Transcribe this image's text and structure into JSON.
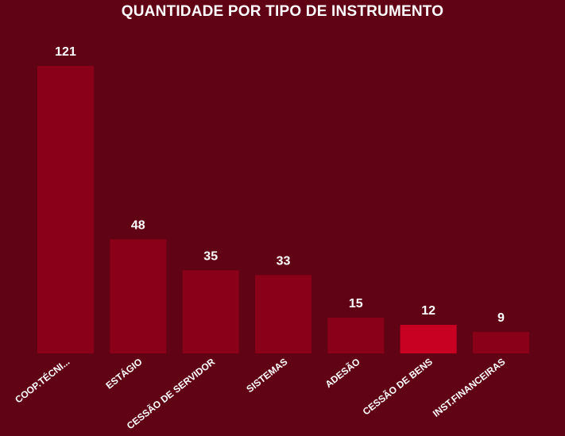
{
  "chart_data": {
    "type": "bar",
    "title": "QUANTIDADE POR TIPO DE INSTRUMENTO",
    "categories": [
      "COOP.TÉCNI...",
      "ESTÁGIO",
      "CESSÃO DE SERVIDOR",
      "SISTEMAS",
      "ADESÃO",
      "CESSÃO DE BENS",
      "INST.FINANCEIRAS"
    ],
    "values": [
      121,
      48,
      35,
      33,
      15,
      12,
      9
    ],
    "ylim": [
      0,
      121
    ],
    "grid": false,
    "legend": "none",
    "colors": {
      "background": "#600415",
      "bar": "#8a0018",
      "bar_highlight": "#c80022",
      "text": "#ffffff"
    },
    "highlight_index": 5
  }
}
